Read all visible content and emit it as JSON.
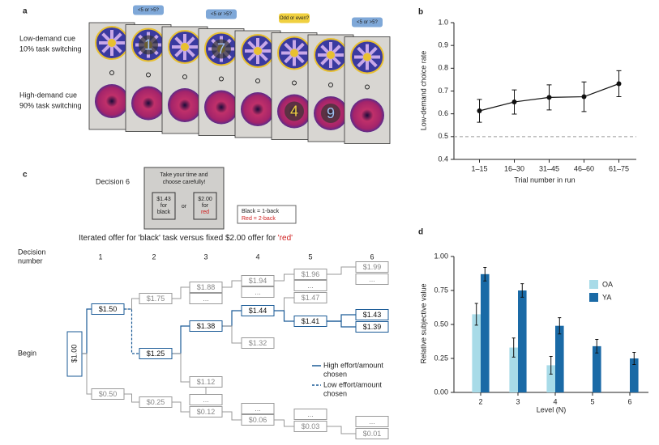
{
  "panel_labels": [
    "a",
    "b",
    "c",
    "d"
  ],
  "panel_a": {
    "cues": [
      {
        "title": "Low-demand cue",
        "detail": "10% task switching"
      },
      {
        "title": "High-demand cue",
        "detail": "90% task switching"
      }
    ],
    "prompts": [
      "<5 or >5?",
      "<5 or >5?",
      "Odd or even?",
      "<5 or >5?"
    ],
    "digits": [
      "1",
      "7",
      "4",
      "9"
    ]
  },
  "panel_c": {
    "decision": "Decision 6",
    "instruction": [
      "Take your time and",
      "choose carefully!"
    ],
    "offer_black": [
      "$1.43",
      "for",
      "black"
    ],
    "or": "or",
    "offer_red": [
      "$2.00",
      "for",
      "red"
    ],
    "key": [
      "Black = 1-back",
      "Red = 2-back"
    ],
    "caption": [
      "Iterated offer for 'black' task versus fixed $2.00 offer for ",
      "'red'"
    ],
    "decision_header": [
      "Decision",
      "number"
    ],
    "decision_numbers": [
      "1",
      "2",
      "3",
      "4",
      "5",
      "6"
    ],
    "begin": "Begin",
    "root": "$1.00",
    "nodes": [
      "$1.50",
      "$0.50",
      "$1.75",
      "$1.25",
      "$0.25",
      "$1.88",
      "...",
      "$1.38",
      "$1.12",
      "...",
      "$0.12",
      "$1.94",
      "...",
      "$1.44",
      "$1.32",
      "...",
      "$0.06",
      "$1.96",
      "...",
      "$1.47",
      "$1.41",
      "...",
      "$0.03",
      "$1.99",
      "...",
      "$1.43",
      "$1.39",
      "...",
      "$0.01"
    ],
    "legend": [
      [
        "High effort/amount",
        "chosen"
      ],
      [
        "Low effort/amount",
        "chosen"
      ]
    ]
  },
  "chart_data": [
    {
      "type": "line",
      "categories": [
        "1–15",
        "16–30",
        "31–45",
        "46–60",
        "61–75"
      ],
      "values": [
        0.613,
        0.652,
        0.672,
        0.675,
        0.732
      ],
      "errors": [
        0.05,
        0.053,
        0.055,
        0.065,
        0.057
      ],
      "color": "#111111",
      "ylim": [
        0.4,
        1
      ],
      "yticks": [
        0.4,
        0.5,
        0.6,
        0.7,
        0.8,
        0.9,
        {
          "value": 1,
          "label": "1.0"
        }
      ],
      "reference_line": 0.5,
      "xlabel": "Trial number in run",
      "ylabel": "Low-demand choice rate"
    },
    {
      "type": "bar",
      "categories": [
        "2",
        "3",
        "4",
        "5",
        "6"
      ],
      "series": [
        {
          "name": "OA",
          "color": "#a8dbe8",
          "values": [
            0.575,
            0.33,
            0.2,
            null,
            null
          ],
          "errors": [
            0.08,
            0.07,
            0.065,
            null,
            null
          ]
        },
        {
          "name": "YA",
          "color": "#1a6aa6",
          "values": [
            0.87,
            0.75,
            0.49,
            0.34,
            0.25
          ],
          "errors": [
            0.05,
            0.05,
            0.06,
            0.05,
            0.045
          ]
        }
      ],
      "ylim": [
        0,
        1
      ],
      "yticks": [
        {
          "value": 0,
          "label": "0.00"
        },
        {
          "value": 0.25,
          "label": "0.25"
        },
        {
          "value": 0.5,
          "label": "0.50"
        },
        {
          "value": 0.75,
          "label": "0.75"
        },
        {
          "value": 1,
          "label": "1.00"
        }
      ],
      "xlabel": "Level (N)",
      "ylabel": "Relative subjective value"
    }
  ]
}
